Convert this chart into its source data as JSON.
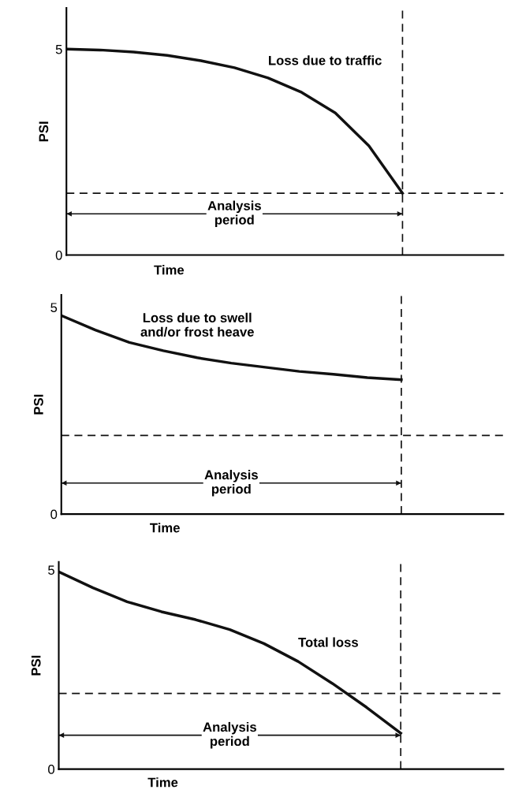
{
  "chart_data": [
    {
      "type": "line",
      "ylabel": "PSI",
      "xlabel": "Time",
      "categories": [
        null,
        null,
        null,
        null,
        null,
        null,
        null,
        null,
        null,
        null,
        null
      ],
      "series": [
        {
          "name": "Loss due to traffic",
          "color": "#111111",
          "values": [
            5.0,
            4.98,
            4.93,
            4.85,
            4.72,
            4.55,
            4.3,
            3.95,
            3.45,
            2.65,
            1.5
          ]
        }
      ],
      "ylim": [
        0,
        6
      ],
      "yticks": [
        0,
        5
      ],
      "tick_labels": "y",
      "grid": false,
      "marker": "none",
      "line_style": "solid",
      "ref_lines": [
        {
          "axis": "y",
          "value": 1.5,
          "line_style": "dashed"
        },
        {
          "axis": "y",
          "value": 1.0,
          "line_style": "solid",
          "label": "Analysis\nperiod"
        }
      ]
    },
    {
      "type": "line",
      "ylabel": "PSI",
      "xlabel": "Time",
      "categories": [
        null,
        null,
        null,
        null,
        null,
        null,
        null,
        null,
        null,
        null,
        null
      ],
      "series": [
        {
          "name": "Loss due to swell\nand/or frost heave",
          "color": "#111111",
          "values": [
            4.8,
            4.45,
            4.15,
            3.95,
            3.78,
            3.65,
            3.55,
            3.45,
            3.38,
            3.3,
            3.25
          ]
        }
      ],
      "ylim": [
        0,
        5.3
      ],
      "yticks": [
        0,
        5
      ],
      "tick_labels": "y",
      "grid": false,
      "marker": "none",
      "line_style": "solid",
      "ref_lines": [
        {
          "axis": "y",
          "value": 1.9,
          "line_style": "dashed"
        },
        {
          "axis": "y",
          "value": 0.75,
          "line_style": "solid",
          "label": "Analysis\nperiod"
        }
      ]
    },
    {
      "type": "line",
      "ylabel": "PSI",
      "xlabel": "Time",
      "categories": [
        null,
        null,
        null,
        null,
        null,
        null,
        null,
        null,
        null,
        null,
        null
      ],
      "series": [
        {
          "name": "Total loss",
          "color": "#111111",
          "values": [
            4.95,
            4.55,
            4.2,
            3.95,
            3.75,
            3.5,
            3.15,
            2.7,
            2.15,
            1.55,
            0.9
          ]
        }
      ],
      "ylim": [
        0,
        5.2
      ],
      "yticks": [
        0,
        5
      ],
      "tick_labels": "y",
      "grid": false,
      "marker": "none",
      "line_style": "solid",
      "ref_lines": [
        {
          "axis": "y",
          "value": 1.9,
          "line_style": "dashed"
        },
        {
          "axis": "y",
          "value": 0.85,
          "line_style": "solid",
          "label": "Analysis\nperiod"
        }
      ]
    }
  ]
}
